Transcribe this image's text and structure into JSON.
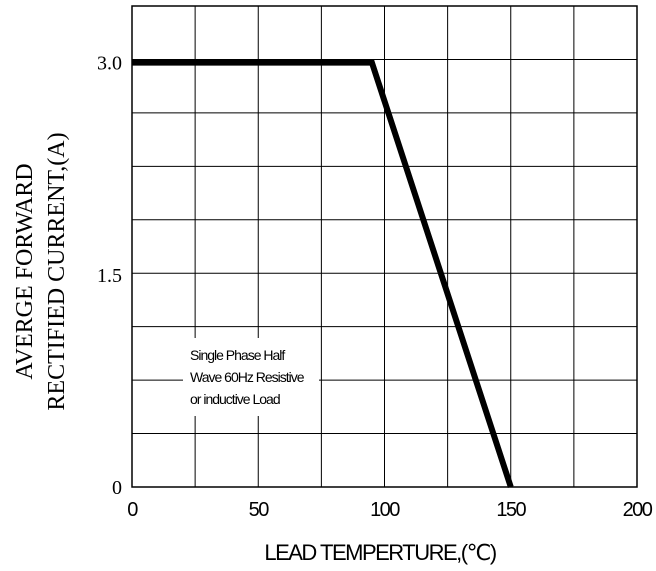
{
  "chart_data": {
    "type": "line",
    "title": "",
    "xlabel": "LEAD TEMPERTURE,(℃)",
    "ylabel_lines": [
      "AVERGE FORWARD",
      "RECTIFIED CURRENT,(A)"
    ],
    "xlim": [
      0,
      200
    ],
    "ylim": [
      0,
      3.4
    ],
    "x_ticks": [
      0,
      50,
      100,
      150,
      200
    ],
    "x_tick_labels": [
      "0",
      "50",
      "100",
      "150",
      "200"
    ],
    "y_ticks": [
      0,
      1.5,
      3.0
    ],
    "y_tick_labels": [
      "0",
      "1.5",
      "3.0"
    ],
    "grid": true,
    "series": [
      {
        "x": [
          0,
          95,
          150
        ],
        "y": [
          3.0,
          3.0,
          0
        ],
        "color": "#000000"
      }
    ],
    "annotation_lines": [
      "Single Phase Half",
      "Wave 60Hz Resistive",
      "or inductive Load"
    ]
  }
}
